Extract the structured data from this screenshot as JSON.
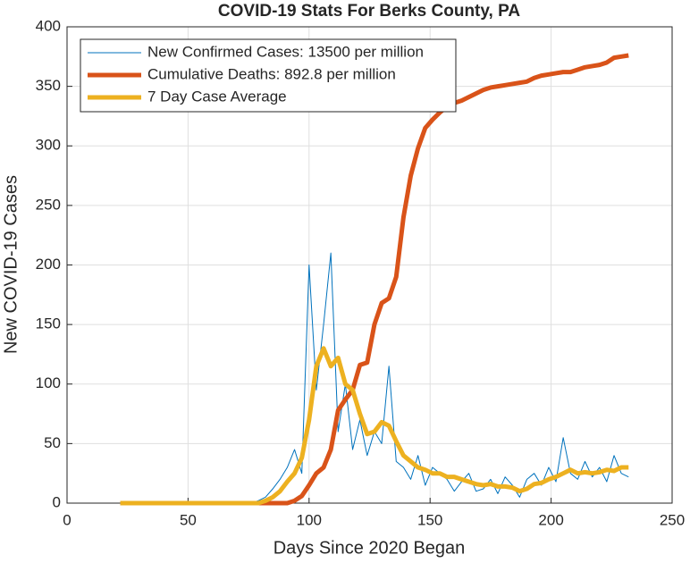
{
  "chart_data": {
    "type": "line",
    "title": "COVID-19 Stats For Berks County, PA",
    "x_label": "Days Since 2020 Began",
    "y_label": "New COVID-19 Cases",
    "x": [
      22,
      25,
      28,
      31,
      34,
      37,
      40,
      43,
      46,
      49,
      52,
      55,
      58,
      61,
      64,
      67,
      70,
      73,
      76,
      79,
      82,
      85,
      88,
      91,
      94,
      97,
      100,
      103,
      106,
      109,
      112,
      115,
      118,
      121,
      124,
      127,
      130,
      133,
      136,
      139,
      142,
      145,
      148,
      151,
      154,
      157,
      160,
      163,
      166,
      169,
      172,
      175,
      178,
      181,
      184,
      187,
      190,
      193,
      196,
      199,
      202,
      205,
      208,
      211,
      214,
      217,
      220,
      223,
      226,
      229,
      232
    ],
    "series": [
      {
        "name": "New Confirmed Cases: 13500 per million",
        "color": "#0072BD",
        "width": 1,
        "values": [
          0,
          0,
          0,
          0,
          0,
          0,
          0,
          0,
          0,
          0,
          0,
          0,
          0,
          0,
          0,
          0,
          0,
          0,
          0,
          2,
          5,
          12,
          20,
          30,
          45,
          25,
          200,
          95,
          150,
          210,
          60,
          100,
          45,
          70,
          40,
          60,
          50,
          115,
          35,
          30,
          20,
          40,
          15,
          30,
          25,
          20,
          10,
          18,
          25,
          10,
          12,
          20,
          8,
          22,
          15,
          5,
          20,
          25,
          15,
          30,
          18,
          55,
          25,
          20,
          35,
          22,
          30,
          18,
          40,
          25,
          22
        ]
      },
      {
        "name": "Cumulative Deaths: 892.8 per million",
        "color": "#D95319",
        "width": 5,
        "values": [
          0,
          0,
          0,
          0,
          0,
          0,
          0,
          0,
          0,
          0,
          0,
          0,
          0,
          0,
          0,
          0,
          0,
          0,
          0,
          0,
          0,
          0,
          0,
          0,
          2,
          6,
          15,
          25,
          30,
          45,
          78,
          87,
          95,
          116,
          118,
          150,
          168,
          172,
          190,
          240,
          275,
          298,
          315,
          322,
          328,
          333,
          336,
          338,
          341,
          344,
          347,
          349,
          350,
          351,
          352,
          353,
          354,
          357,
          359,
          360,
          361,
          362,
          362,
          364,
          366,
          367,
          368,
          370,
          374,
          375,
          376
        ]
      },
      {
        "name": "7 Day Case Average",
        "color": "#EDB120",
        "width": 5,
        "values": [
          0,
          0,
          0,
          0,
          0,
          0,
          0,
          0,
          0,
          0,
          0,
          0,
          0,
          0,
          0,
          0,
          0,
          0,
          0,
          0,
          2,
          5,
          10,
          18,
          25,
          38,
          70,
          115,
          130,
          115,
          122,
          100,
          95,
          75,
          58,
          60,
          68,
          65,
          52,
          40,
          35,
          30,
          28,
          25,
          25,
          22,
          22,
          20,
          18,
          16,
          15,
          16,
          14,
          14,
          13,
          10,
          12,
          16,
          17,
          20,
          22,
          25,
          28,
          25,
          26,
          25,
          26,
          28,
          27,
          30,
          30
        ]
      }
    ],
    "xlim": [
      0,
      250
    ],
    "xticks": [
      0,
      50,
      100,
      150,
      200,
      250
    ],
    "ylim": [
      0,
      400
    ],
    "yticks": [
      0,
      50,
      100,
      150,
      200,
      250,
      300,
      350,
      400
    ],
    "grid": true,
    "legend": "upper-left"
  }
}
